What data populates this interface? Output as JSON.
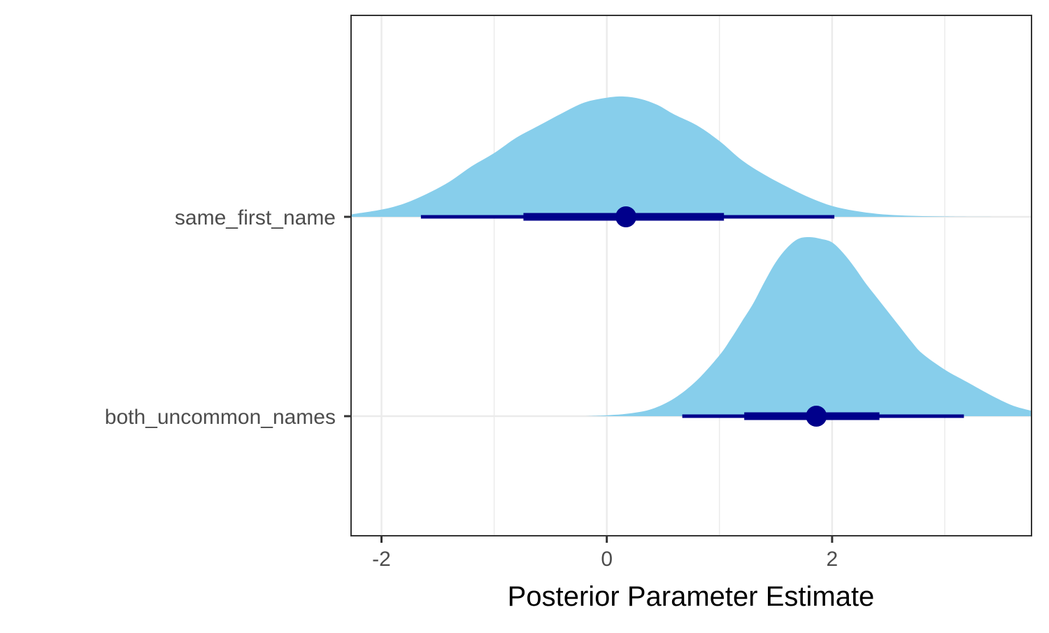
{
  "chart_data": {
    "type": "halfeye",
    "title": "",
    "xlabel": "Posterior Parameter Estimate",
    "ylabel": "",
    "xlim": [
      -2.27,
      3.77
    ],
    "x_ticks": [
      -2,
      0,
      2
    ],
    "x_tick_labels": [
      "-2",
      "0",
      "2"
    ],
    "x_minor_gridlines": [
      -1,
      1,
      3
    ],
    "grid": true,
    "legend": "none",
    "colors": {
      "density_fill": "#87ceeb",
      "interval": "#00008b",
      "gridline": "#ebebeb",
      "panel_border": "#333333",
      "tick_text": "#4d4d4d"
    },
    "series": [
      {
        "name": "same_first_name",
        "point_estimate": 0.17,
        "interval_66": [
          -0.74,
          1.04
        ],
        "interval_95": [
          -1.65,
          2.02
        ],
        "density": {
          "x": [
            -2.27,
            -2.0,
            -1.8,
            -1.6,
            -1.4,
            -1.2,
            -1.0,
            -0.8,
            -0.6,
            -0.4,
            -0.2,
            0.0,
            0.15,
            0.3,
            0.45,
            0.6,
            0.8,
            1.0,
            1.2,
            1.4,
            1.6,
            1.8,
            2.0,
            2.2,
            2.4,
            2.6,
            2.8,
            3.0,
            3.2,
            3.5,
            3.77
          ],
          "y": [
            0.02,
            0.06,
            0.11,
            0.19,
            0.29,
            0.42,
            0.53,
            0.66,
            0.76,
            0.86,
            0.95,
            0.99,
            1.0,
            0.98,
            0.93,
            0.85,
            0.76,
            0.63,
            0.47,
            0.35,
            0.25,
            0.16,
            0.09,
            0.05,
            0.025,
            0.012,
            0.006,
            0.003,
            0.001,
            0.0,
            0.0
          ]
        }
      },
      {
        "name": "both_uncommon_names",
        "point_estimate": 1.86,
        "interval_66": [
          1.22,
          2.42
        ],
        "interval_95": [
          0.67,
          3.17
        ],
        "density": {
          "x": [
            -0.2,
            0.0,
            0.2,
            0.4,
            0.6,
            0.8,
            1.0,
            1.1,
            1.2,
            1.3,
            1.4,
            1.5,
            1.6,
            1.7,
            1.8,
            1.9,
            2.0,
            2.1,
            2.2,
            2.3,
            2.4,
            2.5,
            2.6,
            2.7,
            2.8,
            3.0,
            3.2,
            3.4,
            3.6,
            3.77
          ],
          "y": [
            0.0,
            0.005,
            0.015,
            0.04,
            0.1,
            0.2,
            0.34,
            0.43,
            0.53,
            0.63,
            0.75,
            0.86,
            0.94,
            0.99,
            1.0,
            0.99,
            0.97,
            0.91,
            0.83,
            0.74,
            0.66,
            0.58,
            0.5,
            0.42,
            0.35,
            0.26,
            0.19,
            0.12,
            0.06,
            0.03
          ]
        }
      }
    ]
  }
}
